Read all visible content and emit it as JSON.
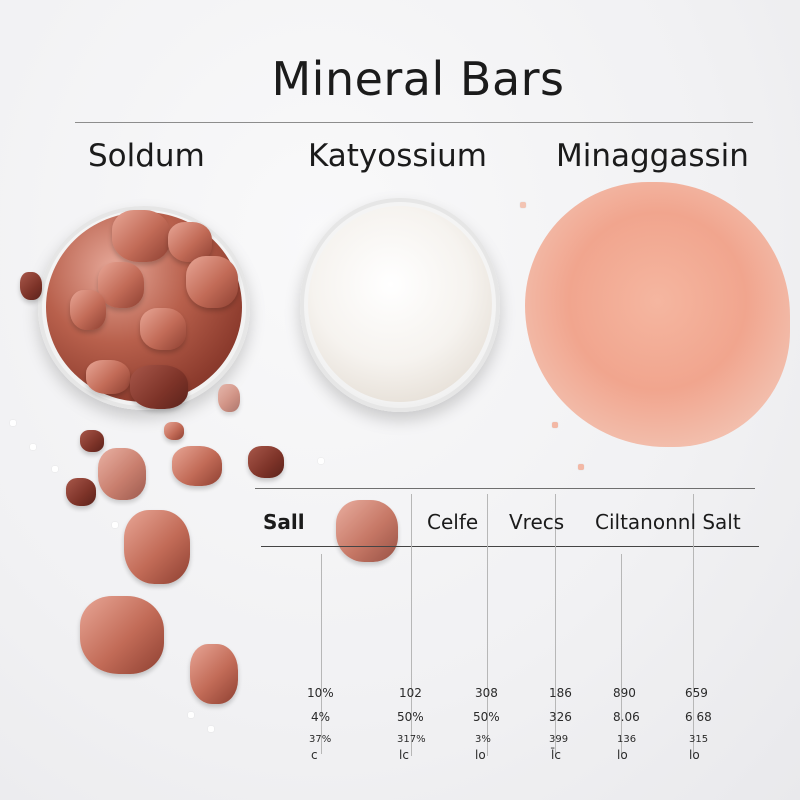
{
  "title": "Mineral Bars",
  "labels": [
    "Soldum",
    "Katyossium",
    "Minaggassin"
  ],
  "table": {
    "headers": [
      "Sall",
      "Celfe",
      "Vrecs",
      "Ciltanonnl Salt"
    ],
    "rows": [
      [
        "10%",
        "102",
        "308",
        "186",
        "890",
        "659"
      ],
      [
        "4%",
        "50%",
        "50%",
        "326",
        "8.06",
        "6 68"
      ],
      [
        "37%",
        "317%",
        "3%",
        "399",
        "136",
        "315"
      ],
      [
        "c",
        "lc",
        "lo",
        "l̄c",
        "lo",
        "lo"
      ]
    ]
  },
  "colors": {
    "pink_salt": "#c26b57",
    "white_salt": "#f6f3ef",
    "peach_salt": "#f1a58e"
  }
}
